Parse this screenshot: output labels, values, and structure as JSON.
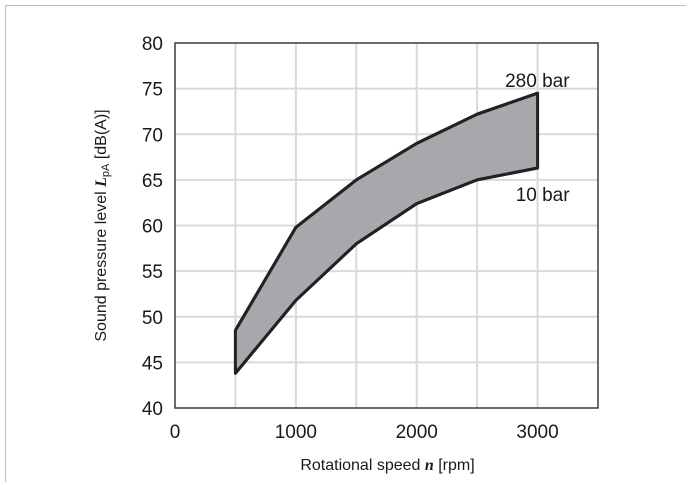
{
  "chart_data": {
    "type": "area",
    "title": "",
    "xlabel": {
      "prefix": "Rotational speed ",
      "symbol": "n",
      "suffix": " [rpm]"
    },
    "ylabel": {
      "prefix": "Sound pressure level ",
      "symbol": "L",
      "subscript": "pA",
      "suffix": " [dB(A)]"
    },
    "xlim": [
      0,
      3500
    ],
    "ylim": [
      40,
      80
    ],
    "xticks": [
      0,
      1000,
      2000,
      3000
    ],
    "yticks": [
      40,
      45,
      50,
      55,
      60,
      65,
      70,
      75,
      80
    ],
    "grid": true,
    "series": [
      {
        "name": "280 bar",
        "x": [
          500,
          1000,
          1500,
          2000,
          2500,
          3000
        ],
        "y": [
          48.5,
          59.8,
          65.0,
          69.0,
          72.2,
          74.5
        ]
      },
      {
        "name": "10 bar",
        "x": [
          500,
          1000,
          1500,
          2000,
          2500,
          3000
        ],
        "y": [
          43.8,
          51.8,
          58.0,
          62.4,
          65.0,
          66.3
        ]
      }
    ],
    "fill_color": "#a6a8ab",
    "line_color": "#222222",
    "grid_color": "#d9d9d9"
  }
}
